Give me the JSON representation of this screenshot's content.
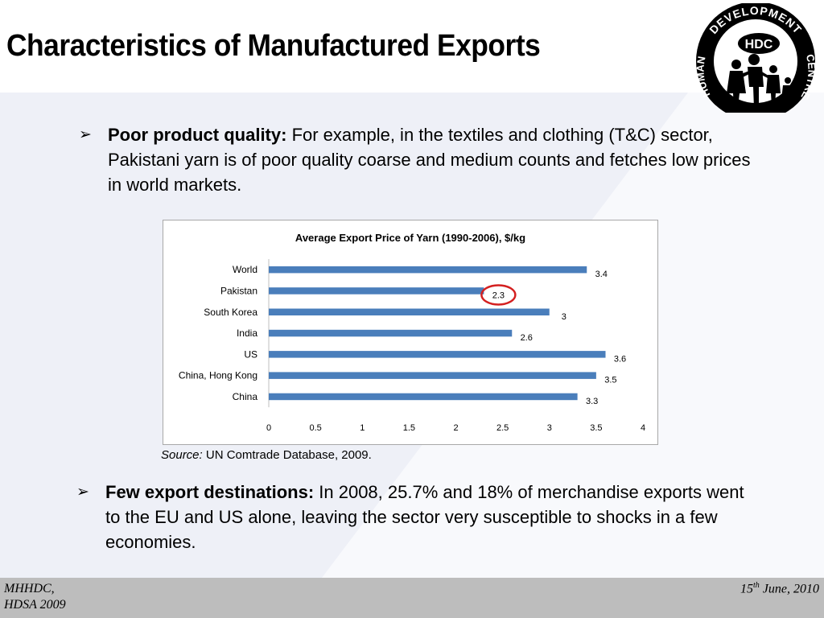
{
  "slide": {
    "title": "Characteristics of Manufactured Exports",
    "logo": {
      "text_top": "DEVELOPMENT",
      "text_left": "HUMAN",
      "text_right": "CENTRE",
      "abbr": "HDC"
    },
    "bullets": [
      {
        "heading": "Poor product quality:",
        "text": " For example, in the textiles and clothing (T&C) sector, Pakistani yarn is of poor quality coarse and medium counts and fetches low prices in world markets."
      },
      {
        "heading": "Few export destinations:",
        "text": " In 2008, 25.7% and 18% of merchandise exports went to the EU and US alone, leaving the sector very susceptible to shocks in a few economies."
      }
    ],
    "source": {
      "label": "Source:",
      "text": " UN Comtrade Database, 2009."
    },
    "footer": {
      "left_line1": "MHHDC,",
      "left_line2": "HDSA 2009",
      "date_day": "15",
      "date_suffix": "th",
      "date_rest": " June, 2010"
    }
  },
  "chart_data": {
    "type": "bar",
    "orientation": "horizontal",
    "title": "Average Export Price of Yarn (1990-2006), $/kg",
    "categories": [
      "World",
      "Pakistan",
      "South Korea",
      "India",
      "US",
      "China, Hong Kong",
      "China"
    ],
    "values": [
      3.4,
      2.3,
      3,
      2.6,
      3.6,
      3.5,
      3.3
    ],
    "value_labels": [
      "3.4",
      "2.3",
      "3",
      "2.6",
      "3.6",
      "3.5",
      "3.3"
    ],
    "xlim": [
      0,
      4
    ],
    "x_ticks": [
      "0",
      "0.5",
      "1",
      "1.5",
      "2",
      "2.5",
      "3",
      "3.5",
      "4"
    ],
    "highlighted_category": "Pakistan",
    "bar_color": "#4a7ebb",
    "highlight_color": "#d42020",
    "grid": false,
    "legend": "none"
  }
}
